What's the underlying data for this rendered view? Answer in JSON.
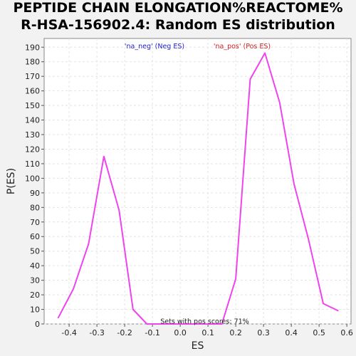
{
  "chart_data": {
    "type": "line",
    "title": [
      "PEPTIDE CHAIN ELONGATION%REACTOME%",
      "R-HSA-156902.4: Random ES distribution"
    ],
    "xlabel": "ES",
    "ylabel": "P(ES)",
    "xlim": [
      -0.49,
      0.615
    ],
    "ylim": [
      0,
      196
    ],
    "xticks": [
      -0.4,
      -0.3,
      -0.2,
      -0.1,
      0.0,
      0.1,
      0.2,
      0.3,
      0.4,
      0.5,
      0.6
    ],
    "xtick_labels": [
      "-0.4",
      "-0.3",
      "-0.2",
      "-0.1",
      "0.0",
      "0.1",
      "0.2",
      "0.3",
      "0.4",
      "0.5",
      "0.6"
    ],
    "yticks": [
      0,
      10,
      20,
      30,
      40,
      50,
      60,
      70,
      80,
      90,
      100,
      110,
      120,
      130,
      140,
      150,
      160,
      170,
      180,
      190
    ],
    "ytick_labels": [
      "0",
      "10",
      "20",
      "30",
      "40",
      "50",
      "60",
      "70",
      "80",
      "90",
      "100",
      "110",
      "120",
      "130",
      "140",
      "150",
      "160",
      "170",
      "180",
      "190"
    ],
    "grid": true,
    "legend": [
      {
        "label": "'na_neg' (Neg ES)",
        "color": "#2222cc"
      },
      {
        "label": "'na_pos' (Pos ES)",
        "color": "#cc2222"
      }
    ],
    "series": [
      {
        "color": "#ee44ee",
        "points": [
          [
            -0.44,
            4
          ],
          [
            -0.385,
            24
          ],
          [
            -0.33,
            55
          ],
          [
            -0.275,
            115
          ],
          [
            -0.22,
            78
          ],
          [
            -0.17,
            10
          ],
          [
            -0.12,
            0
          ],
          [
            0.15,
            0
          ],
          [
            0.2,
            31
          ],
          [
            0.252,
            168
          ],
          [
            0.305,
            186
          ],
          [
            0.358,
            152
          ],
          [
            0.41,
            96
          ],
          [
            0.462,
            58
          ],
          [
            0.515,
            14
          ],
          [
            0.57,
            9
          ]
        ]
      }
    ],
    "annotation": "Sets with pos scores: 71%"
  }
}
